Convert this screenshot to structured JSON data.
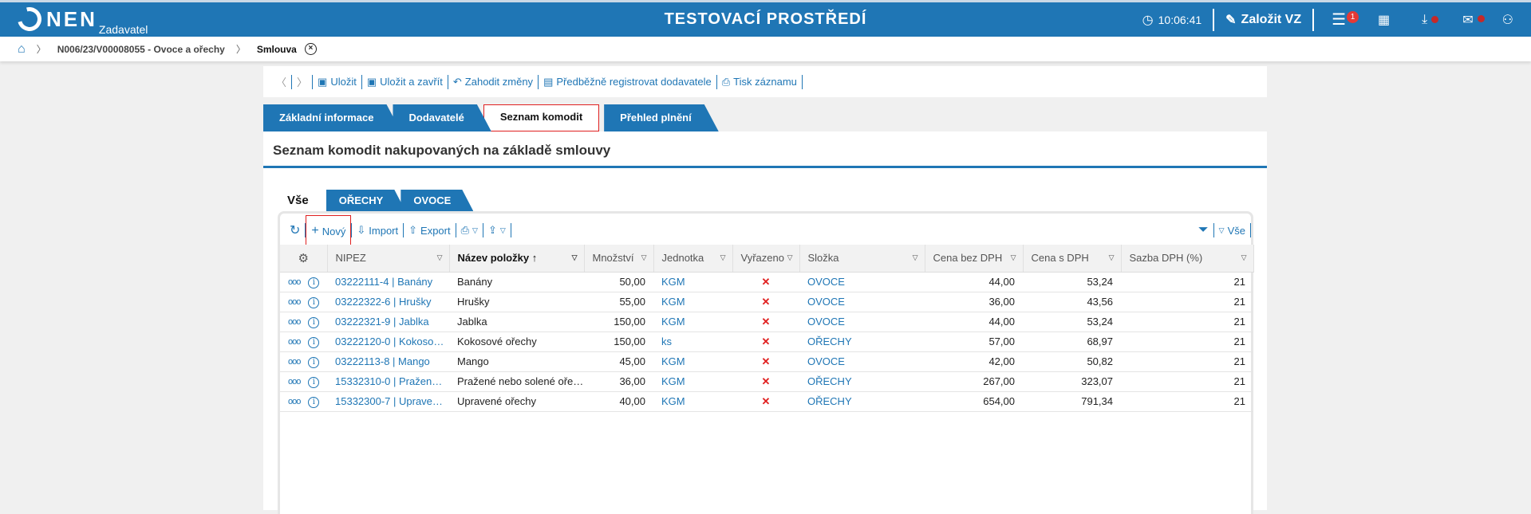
{
  "header": {
    "logo": "NEN",
    "logo_sub": "Zadavatel",
    "title": "TESTOVACÍ PROSTŘEDÍ",
    "time": "10:06:41",
    "create_label": "Založit VZ",
    "menu_badge": "1"
  },
  "breadcrumb": {
    "item1": "N006/23/V00008055 - Ovoce a ořechy",
    "current": "Smlouva",
    "close": "×"
  },
  "toolbar": {
    "save": "Uložit",
    "save_close": "Uložit a zavřít",
    "discard": "Zahodit změny",
    "prereg": "Předběžně registrovat dodavatele",
    "print": "Tisk záznamu"
  },
  "tabs": [
    "Základní informace",
    "Dodavatelé",
    "Seznam komodit",
    "Přehled plnění"
  ],
  "section_title": "Seznam komodit nakupovaných na základě smlouvy",
  "subtabs": [
    "Vše",
    "OŘECHY",
    "OVOCE"
  ],
  "grid_toolbar": {
    "new": "Nový",
    "import": "Import",
    "export": "Export",
    "view": "Vše"
  },
  "columns": [
    "NIPEZ",
    "Název položky",
    "Množství",
    "Jednotka",
    "Vyřazeno",
    "Složka",
    "Cena bez DPH",
    "Cena s DPH",
    "Sazba DPH (%)"
  ],
  "rows": [
    [
      "03222111-4 | Banány",
      "Banány",
      "50,00",
      "KGM",
      "✕",
      "OVOCE",
      "44,00",
      "53,24",
      "21"
    ],
    [
      "03222322-6 | Hrušky",
      "Hrušky",
      "55,00",
      "KGM",
      "✕",
      "OVOCE",
      "36,00",
      "43,56",
      "21"
    ],
    [
      "03222321-9 | Jablka",
      "Jablka",
      "150,00",
      "KGM",
      "✕",
      "OVOCE",
      "44,00",
      "53,24",
      "21"
    ],
    [
      "03222120-0 | Kokoso…",
      "Kokosové ořechy",
      "150,00",
      "ks",
      "✕",
      "OŘECHY",
      "57,00",
      "68,97",
      "21"
    ],
    [
      "03222113-8 | Mango",
      "Mango",
      "45,00",
      "KGM",
      "✕",
      "OVOCE",
      "42,00",
      "50,82",
      "21"
    ],
    [
      "15332310-0 | Pražen…",
      "Pražené nebo solené oře…",
      "36,00",
      "KGM",
      "✕",
      "OŘECHY",
      "267,00",
      "323,07",
      "21"
    ],
    [
      "15332300-7 | Uprave…",
      "Upravené ořechy",
      "40,00",
      "KGM",
      "✕",
      "OŘECHY",
      "654,00",
      "791,34",
      "21"
    ]
  ]
}
